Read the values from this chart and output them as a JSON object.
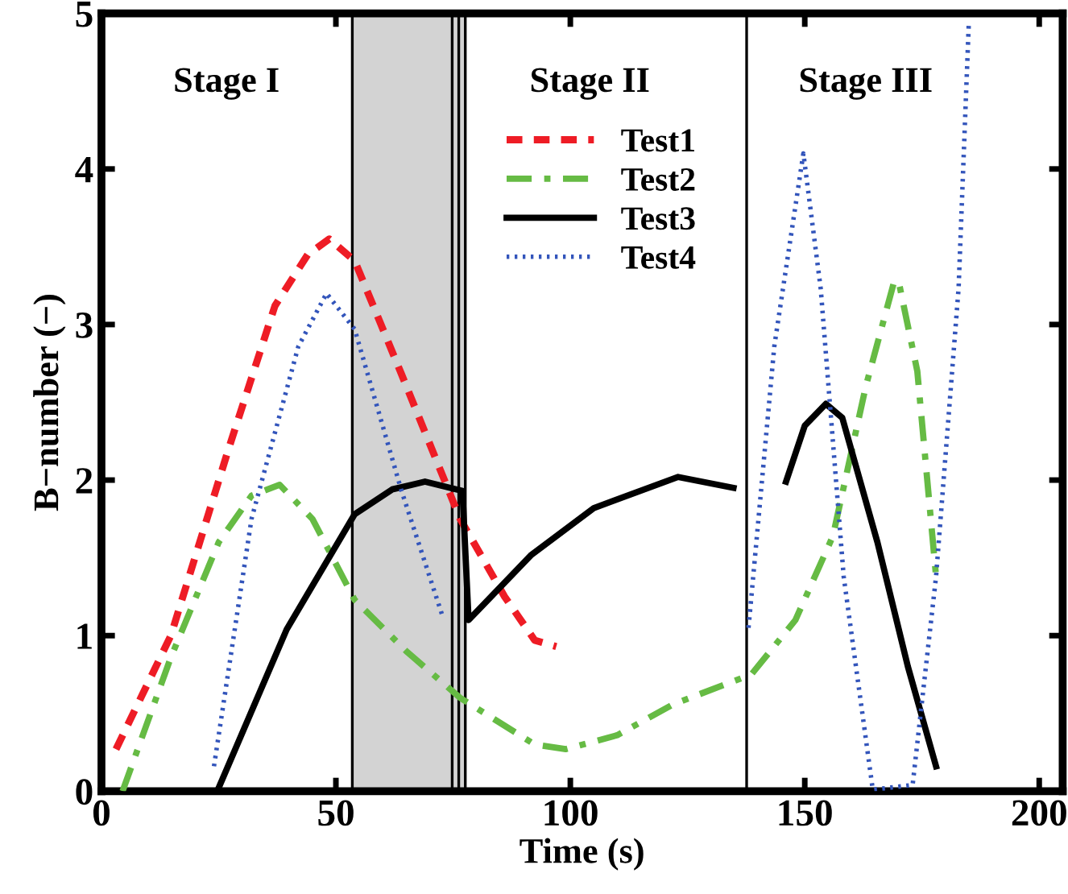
{
  "chart_data": {
    "type": "line",
    "xlabel": "Time (s)",
    "ylabel": "B−number (−)",
    "xlim": [
      0,
      205
    ],
    "ylim": [
      0,
      5
    ],
    "xticks": [
      0,
      50,
      100,
      150,
      200
    ],
    "yticks": [
      0,
      1,
      2,
      3,
      4,
      5
    ],
    "grid": false,
    "legend": "upper center",
    "series": [
      {
        "name": "Test1",
        "color": "#ee1c25",
        "line_style": "dashed",
        "x": [
          3.1,
          14.8,
          27,
          37,
          44,
          48.6,
          54,
          64,
          76.5,
          86,
          92.4,
          97
        ],
        "values": [
          0.27,
          1.0,
          2.19,
          3.12,
          3.45,
          3.55,
          3.41,
          2.68,
          1.75,
          1.25,
          0.97,
          0.93
        ]
      },
      {
        "name": "Test2",
        "color": "#66bb44",
        "line_style": "dashdot",
        "x": [
          4.5,
          14.8,
          25,
          32,
          38,
          45,
          54,
          65,
          76.5,
          92.4,
          99,
          110,
          122,
          138.6,
          148,
          156,
          163,
          169,
          170,
          174,
          178
        ],
        "values": [
          0,
          0.86,
          1.6,
          1.9,
          1.97,
          1.75,
          1.23,
          0.9,
          0.6,
          0.3,
          0.27,
          0.36,
          0.56,
          0.75,
          1.1,
          1.64,
          2.6,
          3.27,
          3.28,
          2.7,
          1.38
        ]
      },
      {
        "name": "Test3",
        "color": "#000000",
        "line_style": "solid",
        "x": [
          24.7,
          39.5,
          54,
          62,
          69,
          77,
          78.3,
          91.7,
          105,
          123,
          134.8,
          140,
          146,
          150,
          154.5,
          158,
          165.5,
          172,
          178
        ],
        "values": [
          0,
          1.04,
          1.78,
          1.94,
          1.99,
          1.93,
          1.1,
          1.52,
          1.82,
          2.02,
          1.95,
          null,
          1.99,
          2.35,
          2.49,
          2.4,
          1.6,
          0.8,
          0.16
        ]
      },
      {
        "name": "Test4",
        "color": "#3355bb",
        "line_style": "dotted",
        "x": [
          24,
          32,
          42,
          48,
          54,
          64,
          72.8,
          100,
          138,
          143.5,
          149.7,
          153.4,
          158.3,
          164.5,
          173,
          178,
          182.8,
          185
        ],
        "values": [
          0.16,
          1.75,
          2.86,
          3.2,
          2.97,
          1.93,
          1.12,
          null,
          1.05,
          2.86,
          4.1,
          3.23,
          1.38,
          0.01,
          0.04,
          1.38,
          3.23,
          4.95
        ]
      }
    ],
    "bands": [
      {
        "axis": "x",
        "from": 53.5,
        "to": 77.6,
        "color": "#d3d3d3"
      }
    ],
    "ref_lines": [
      {
        "axis": "x",
        "value": 53.5,
        "color": "#000000",
        "line_style": "solid"
      },
      {
        "axis": "x",
        "value": 74.8,
        "color": "#000000",
        "line_style": "solid"
      },
      {
        "axis": "x",
        "value": 76.2,
        "color": "#000000",
        "line_style": "solid"
      },
      {
        "axis": "x",
        "value": 77.6,
        "color": "#000000",
        "line_style": "solid"
      },
      {
        "axis": "x",
        "value": 137.6,
        "color": "#000000",
        "line_style": "solid"
      }
    ],
    "annotations": [
      "Stage I",
      "Stage II",
      "Stage III"
    ]
  }
}
